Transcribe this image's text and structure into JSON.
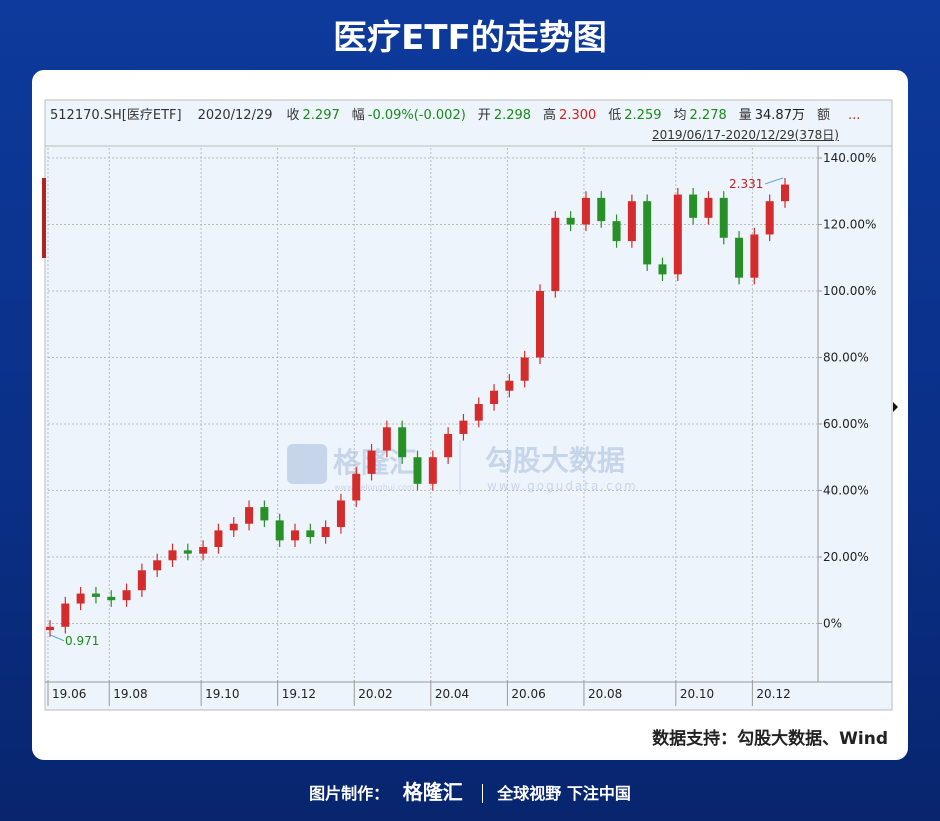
{
  "title": "医疗ETF的走势图",
  "quote": {
    "instrument": "512170.SH[医疗ETF]",
    "date": "2020/12/29",
    "items": [
      {
        "label": "收",
        "value": "2.297",
        "color": "#1a8a1a"
      },
      {
        "label": "幅",
        "value": "-0.09%(-0.002)",
        "color": "#1a8a1a"
      },
      {
        "label": "开",
        "value": "2.298",
        "color": "#1a8a1a"
      },
      {
        "label": "高",
        "value": "2.300",
        "color": "#d42020"
      },
      {
        "label": "低",
        "value": "2.259",
        "color": "#1a8a1a"
      },
      {
        "label": "均",
        "value": "2.278",
        "color": "#1a8a1a"
      },
      {
        "label": "量",
        "value": "34.87万",
        "color": "#222"
      }
    ],
    "more": "额",
    "ellipsis": "...",
    "range": "2019/06/17-2020/12/29(378日)"
  },
  "watermark": {
    "brand": "格隆汇",
    "brand_url": "www.gelonghui.com",
    "source": "勾股大数据",
    "source_url": "www.gogudata.com"
  },
  "source_note": "数据支持：勾股大数据、Wind",
  "footer": {
    "made_by": "图片制作：",
    "brand": "格隆汇",
    "slogan": "全球视野 下注中国"
  },
  "chart_data": {
    "type": "candlestick",
    "categories": [
      "19.06",
      null,
      null,
      null,
      "19.08",
      null,
      null,
      null,
      null,
      null,
      "19.10",
      null,
      null,
      null,
      null,
      "19.12",
      null,
      null,
      null,
      null,
      "20.02",
      null,
      null,
      null,
      null,
      "20.04",
      null,
      null,
      null,
      null,
      "20.06",
      null,
      null,
      null,
      null,
      "20.08",
      null,
      null,
      null,
      null,
      null,
      "20.10",
      null,
      null,
      null,
      null,
      "20.12",
      null,
      null
    ],
    "open": [
      -2,
      -1,
      6,
      9,
      8,
      7,
      10,
      16,
      19,
      22,
      21,
      23,
      28,
      30,
      35,
      31,
      25,
      28,
      26,
      29,
      37,
      45,
      52,
      59,
      50,
      42,
      50,
      57,
      61,
      66,
      70,
      73,
      80,
      100,
      122,
      120,
      128,
      121,
      115,
      127,
      108,
      105,
      129,
      122,
      128,
      116,
      104,
      117,
      127
    ],
    "high": [
      1,
      8,
      11,
      11,
      10,
      12,
      18,
      21,
      24,
      24,
      25,
      30,
      32,
      37,
      37,
      33,
      30,
      30,
      31,
      39,
      47,
      54,
      61,
      61,
      52,
      52,
      59,
      63,
      68,
      72,
      75,
      82,
      102,
      124,
      124,
      130,
      130,
      123,
      129,
      129,
      110,
      131,
      131,
      130,
      130,
      118,
      119,
      129,
      134
    ],
    "low": [
      -4,
      -3,
      4,
      6,
      5,
      5,
      8,
      14,
      17,
      19,
      19,
      21,
      26,
      28,
      29,
      23,
      23,
      24,
      24,
      27,
      35,
      43,
      50,
      48,
      40,
      40,
      48,
      55,
      59,
      64,
      68,
      71,
      78,
      98,
      118,
      118,
      119,
      113,
      113,
      106,
      103,
      103,
      120,
      120,
      114,
      102,
      102,
      115,
      125
    ],
    "close": [
      -1,
      6,
      9,
      8,
      7,
      10,
      16,
      19,
      22,
      21,
      23,
      28,
      30,
      35,
      31,
      25,
      28,
      26,
      29,
      37,
      45,
      52,
      59,
      50,
      42,
      50,
      57,
      61,
      66,
      70,
      73,
      80,
      100,
      122,
      120,
      128,
      121,
      115,
      127,
      108,
      105,
      129,
      122,
      128,
      116,
      104,
      117,
      127,
      132
    ],
    "up_color": "#d42c2c",
    "down_color": "#279127",
    "ylim": [
      -17,
      143
    ],
    "yticks": [
      {
        "value": 0,
        "label": "0%"
      },
      {
        "value": 20,
        "label": "20.00%"
      },
      {
        "value": 40,
        "label": "40.00%"
      },
      {
        "value": 60,
        "label": "60.00%"
      },
      {
        "value": 80,
        "label": "80.00%"
      },
      {
        "value": 100,
        "label": "100.00%"
      },
      {
        "value": 120,
        "label": "120.00%"
      },
      {
        "value": 140,
        "label": "140.00%"
      }
    ],
    "grid": true,
    "annotations": {
      "max": "2.331",
      "min": "0.971"
    }
  }
}
